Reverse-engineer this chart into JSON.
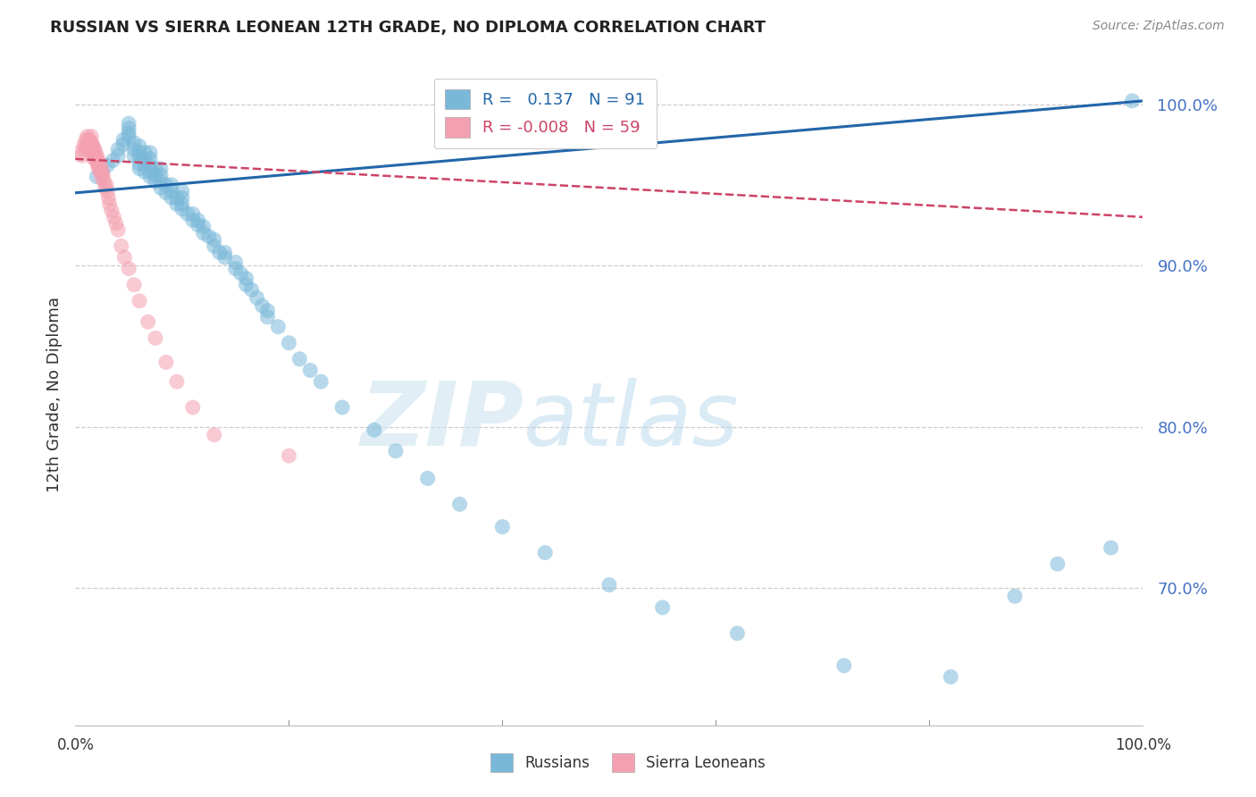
{
  "title": "RUSSIAN VS SIERRA LEONEAN 12TH GRADE, NO DIPLOMA CORRELATION CHART",
  "source": "Source: ZipAtlas.com",
  "ylabel": "12th Grade, No Diploma",
  "ytick_labels": [
    "100.0%",
    "90.0%",
    "80.0%",
    "70.0%"
  ],
  "ytick_values": [
    1.0,
    0.9,
    0.8,
    0.7
  ],
  "xlim": [
    0.0,
    1.0
  ],
  "ylim": [
    0.615,
    1.025
  ],
  "legend_russian": "R =   0.137   N = 91",
  "legend_sierra": "R = -0.008   N = 59",
  "watermark_zip": "ZIP",
  "watermark_atlas": "atlas",
  "blue_color": "#7ab8d9",
  "pink_color": "#f4a0b0",
  "line_blue": "#2266aa",
  "line_pink": "#cc4466",
  "russian_x": [
    0.02,
    0.025,
    0.03,
    0.035,
    0.04,
    0.04,
    0.045,
    0.045,
    0.05,
    0.05,
    0.05,
    0.05,
    0.055,
    0.055,
    0.055,
    0.06,
    0.06,
    0.06,
    0.06,
    0.06,
    0.065,
    0.065,
    0.065,
    0.065,
    0.07,
    0.07,
    0.07,
    0.07,
    0.07,
    0.075,
    0.075,
    0.075,
    0.08,
    0.08,
    0.08,
    0.08,
    0.085,
    0.085,
    0.09,
    0.09,
    0.09,
    0.095,
    0.095,
    0.1,
    0.1,
    0.1,
    0.1,
    0.105,
    0.11,
    0.11,
    0.115,
    0.115,
    0.12,
    0.12,
    0.125,
    0.13,
    0.13,
    0.135,
    0.14,
    0.14,
    0.15,
    0.15,
    0.155,
    0.16,
    0.16,
    0.165,
    0.17,
    0.175,
    0.18,
    0.18,
    0.19,
    0.2,
    0.21,
    0.22,
    0.23,
    0.25,
    0.28,
    0.3,
    0.33,
    0.36,
    0.4,
    0.44,
    0.5,
    0.55,
    0.62,
    0.72,
    0.82,
    0.88,
    0.92,
    0.97,
    0.99
  ],
  "russian_y": [
    0.955,
    0.958,
    0.962,
    0.965,
    0.968,
    0.972,
    0.975,
    0.978,
    0.98,
    0.982,
    0.985,
    0.988,
    0.968,
    0.972,
    0.976,
    0.96,
    0.963,
    0.967,
    0.97,
    0.974,
    0.958,
    0.962,
    0.966,
    0.97,
    0.955,
    0.958,
    0.962,
    0.966,
    0.97,
    0.952,
    0.956,
    0.96,
    0.948,
    0.952,
    0.956,
    0.96,
    0.945,
    0.95,
    0.942,
    0.946,
    0.95,
    0.938,
    0.942,
    0.935,
    0.938,
    0.942,
    0.946,
    0.932,
    0.928,
    0.932,
    0.925,
    0.928,
    0.92,
    0.924,
    0.918,
    0.912,
    0.916,
    0.908,
    0.905,
    0.908,
    0.898,
    0.902,
    0.895,
    0.888,
    0.892,
    0.885,
    0.88,
    0.875,
    0.868,
    0.872,
    0.862,
    0.852,
    0.842,
    0.835,
    0.828,
    0.812,
    0.798,
    0.785,
    0.768,
    0.752,
    0.738,
    0.722,
    0.702,
    0.688,
    0.672,
    0.652,
    0.645,
    0.695,
    0.715,
    0.725,
    1.002
  ],
  "sierra_x": [
    0.004,
    0.006,
    0.008,
    0.009,
    0.01,
    0.01,
    0.011,
    0.012,
    0.012,
    0.013,
    0.013,
    0.014,
    0.014,
    0.015,
    0.015,
    0.015,
    0.016,
    0.016,
    0.016,
    0.017,
    0.017,
    0.018,
    0.018,
    0.019,
    0.019,
    0.02,
    0.02,
    0.021,
    0.021,
    0.022,
    0.022,
    0.023,
    0.023,
    0.024,
    0.025,
    0.025,
    0.026,
    0.027,
    0.028,
    0.029,
    0.03,
    0.031,
    0.032,
    0.034,
    0.036,
    0.038,
    0.04,
    0.043,
    0.046,
    0.05,
    0.055,
    0.06,
    0.068,
    0.075,
    0.085,
    0.095,
    0.11,
    0.13,
    0.2
  ],
  "sierra_y": [
    0.97,
    0.968,
    0.975,
    0.972,
    0.978,
    0.974,
    0.98,
    0.976,
    0.972,
    0.978,
    0.974,
    0.976,
    0.972,
    0.98,
    0.976,
    0.972,
    0.975,
    0.971,
    0.967,
    0.973,
    0.969,
    0.972,
    0.968,
    0.97,
    0.966,
    0.968,
    0.964,
    0.966,
    0.962,
    0.964,
    0.96,
    0.962,
    0.958,
    0.96,
    0.958,
    0.954,
    0.956,
    0.952,
    0.948,
    0.95,
    0.946,
    0.942,
    0.938,
    0.934,
    0.93,
    0.926,
    0.922,
    0.912,
    0.905,
    0.898,
    0.888,
    0.878,
    0.865,
    0.855,
    0.84,
    0.828,
    0.812,
    0.795,
    0.782
  ]
}
